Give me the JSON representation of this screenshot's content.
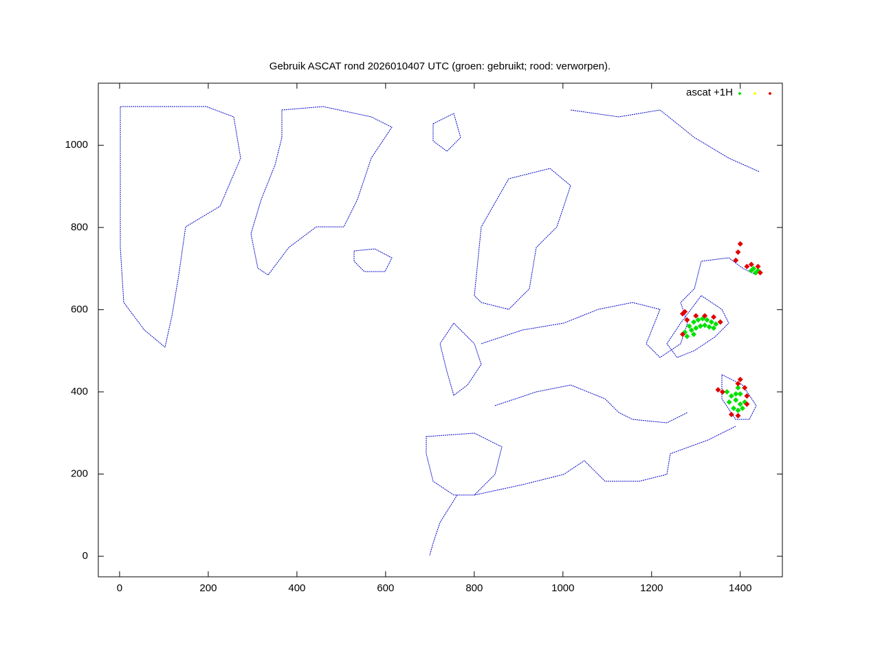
{
  "chart_data": {
    "type": "scatter",
    "title": "Gebruik ASCAT rond 2026010407 UTC (groen: gebruikt; rood: verworpen).",
    "legend": {
      "label": "ascat +1H",
      "position": "top-right"
    },
    "xlim": [
      -48,
      1495
    ],
    "ylim": [
      -50,
      1151
    ],
    "xticks": [
      0,
      200,
      400,
      600,
      800,
      1000,
      1200,
      1400
    ],
    "yticks": [
      0,
      200,
      400,
      600,
      800,
      1000
    ],
    "series": [
      {
        "color": "#00e000",
        "x": [
          1275,
          1285,
          1295,
          1305,
          1315,
          1325,
          1335,
          1345,
          1290,
          1300,
          1310,
          1320,
          1330,
          1340,
          1280,
          1295,
          1370,
          1380,
          1390,
          1400,
          1410,
          1385,
          1395,
          1405,
          1400,
          1395,
          1375,
          1390,
          1425,
          1430,
          1435,
          1440
        ],
        "y": [
          545,
          560,
          570,
          575,
          578,
          575,
          570,
          565,
          550,
          555,
          560,
          562,
          558,
          555,
          535,
          540,
          400,
          390,
          380,
          370,
          375,
          360,
          355,
          360,
          395,
          410,
          375,
          395,
          695,
          700,
          690,
          695
        ]
      },
      {
        "color": "#ffff00",
        "x": [],
        "y": []
      },
      {
        "color": "#e00000",
        "x": [
          1270,
          1280,
          1300,
          1320,
          1340,
          1355,
          1270,
          1275,
          1360,
          1350,
          1395,
          1400,
          1410,
          1415,
          1415,
          1380,
          1395,
          1390,
          1395,
          1400,
          1415,
          1425,
          1440,
          1445
        ],
        "y": [
          540,
          575,
          585,
          585,
          582,
          570,
          590,
          595,
          400,
          405,
          420,
          430,
          410,
          390,
          370,
          345,
          342,
          720,
          740,
          760,
          705,
          710,
          705,
          690
        ]
      }
    ]
  }
}
